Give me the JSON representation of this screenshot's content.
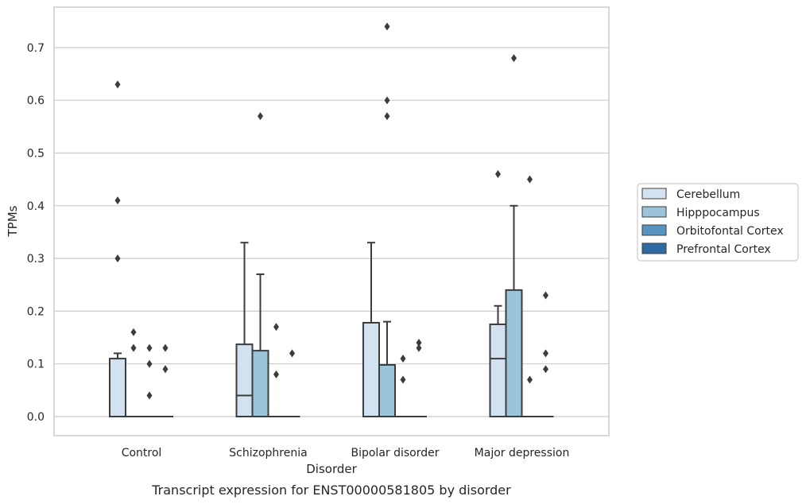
{
  "chart_data": {
    "type": "box",
    "caption": "Transcript expression for ENST00000581805 by disorder",
    "xlabel": "Disorder",
    "ylabel": "TPMs",
    "ylim": [
      -0.04,
      0.78
    ],
    "yticks": [
      0.0,
      0.1,
      0.2,
      0.3,
      0.4,
      0.5,
      0.6,
      0.7
    ],
    "ytick_labels": [
      "0.0",
      "0.1",
      "0.2",
      "0.3",
      "0.4",
      "0.5",
      "0.6",
      "0.7"
    ],
    "grid": "horizontal",
    "legend_position": "right",
    "categories": [
      "Control",
      "Schizophrenia",
      "Bipolar disorder",
      "Major depression"
    ],
    "series": [
      {
        "name": "Cerebellum",
        "color": "#d3e2f1",
        "boxes": [
          {
            "q1": 0.0,
            "median": 0.0,
            "q3": 0.11,
            "whisker_low": 0.0,
            "whisker_high": 0.12,
            "outliers": [
              0.63,
              0.41,
              0.3
            ]
          },
          {
            "q1": 0.0,
            "median": 0.04,
            "q3": 0.137,
            "whisker_low": 0.0,
            "whisker_high": 0.33,
            "outliers": []
          },
          {
            "q1": 0.0,
            "median": 0.0,
            "q3": 0.178,
            "whisker_low": 0.0,
            "whisker_high": 0.33,
            "outliers": []
          },
          {
            "q1": 0.0,
            "median": 0.11,
            "q3": 0.175,
            "whisker_low": 0.0,
            "whisker_high": 0.21,
            "outliers": [
              0.46
            ]
          }
        ]
      },
      {
        "name": "Hipppocampus",
        "color": "#9bc3da",
        "boxes": [
          {
            "q1": 0.0,
            "median": 0.0,
            "q3": 0.0,
            "whisker_low": 0.0,
            "whisker_high": 0.0,
            "outliers": [
              0.16,
              0.13
            ]
          },
          {
            "q1": 0.0,
            "median": 0.0,
            "q3": 0.125,
            "whisker_low": 0.0,
            "whisker_high": 0.27,
            "outliers": [
              0.57
            ]
          },
          {
            "q1": 0.0,
            "median": 0.0,
            "q3": 0.098,
            "whisker_low": 0.0,
            "whisker_high": 0.18,
            "outliers": [
              0.74,
              0.6,
              0.57
            ]
          },
          {
            "q1": 0.0,
            "median": 0.0,
            "q3": 0.24,
            "whisker_low": 0.0,
            "whisker_high": 0.4,
            "outliers": [
              0.68
            ]
          }
        ]
      },
      {
        "name": "Orbitofontal Cortex",
        "color": "#5894c0",
        "boxes": [
          {
            "q1": 0.0,
            "median": 0.0,
            "q3": 0.0,
            "whisker_low": 0.0,
            "whisker_high": 0.0,
            "outliers": [
              0.13,
              0.1,
              0.04
            ]
          },
          {
            "q1": 0.0,
            "median": 0.0,
            "q3": 0.0,
            "whisker_low": 0.0,
            "whisker_high": 0.0,
            "outliers": [
              0.17,
              0.08
            ]
          },
          {
            "q1": 0.0,
            "median": 0.0,
            "q3": 0.0,
            "whisker_low": 0.0,
            "whisker_high": 0.0,
            "outliers": [
              0.11,
              0.07
            ]
          },
          {
            "q1": 0.0,
            "median": 0.0,
            "q3": 0.0,
            "whisker_low": 0.0,
            "whisker_high": 0.0,
            "outliers": [
              0.45,
              0.07
            ]
          }
        ]
      },
      {
        "name": "Prefrontal Cortex",
        "color": "#2e6ba3",
        "boxes": [
          {
            "q1": 0.0,
            "median": 0.0,
            "q3": 0.0,
            "whisker_low": 0.0,
            "whisker_high": 0.0,
            "outliers": [
              0.13,
              0.09
            ]
          },
          {
            "q1": 0.0,
            "median": 0.0,
            "q3": 0.0,
            "whisker_low": 0.0,
            "whisker_high": 0.0,
            "outliers": [
              0.12
            ]
          },
          {
            "q1": 0.0,
            "median": 0.0,
            "q3": 0.0,
            "whisker_low": 0.0,
            "whisker_high": 0.0,
            "outliers": [
              0.14,
              0.13
            ]
          },
          {
            "q1": 0.0,
            "median": 0.0,
            "q3": 0.0,
            "whisker_low": 0.0,
            "whisker_high": 0.0,
            "outliers": [
              0.23,
              0.12,
              0.09
            ]
          }
        ]
      }
    ],
    "colors": {
      "line": "#3c3c3c",
      "grid": "#cccccc",
      "frame": "#cccccc",
      "outlier": "#3c3c3c"
    }
  }
}
